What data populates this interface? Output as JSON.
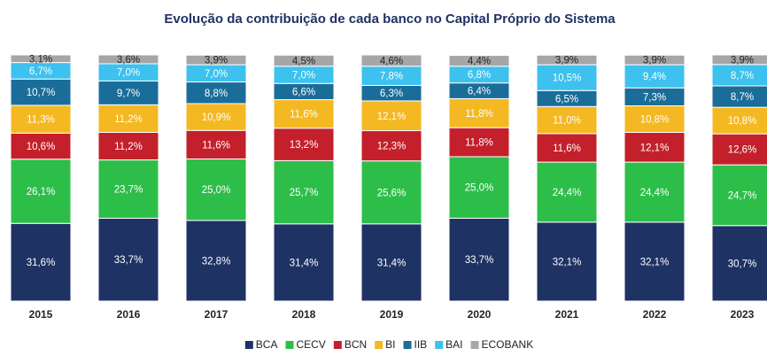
{
  "chart_data": {
    "type": "stacked_bar",
    "title": "Evolução da contribuição de cada banco no Capital Próprio do Sistema",
    "categories": [
      "2015",
      "2016",
      "2017",
      "2018",
      "2019",
      "2020",
      "2021",
      "2022",
      "2023"
    ],
    "series": [
      {
        "name": "BCA",
        "color": "#1f3264",
        "values": [
          31.6,
          33.7,
          32.8,
          31.4,
          31.4,
          33.7,
          32.1,
          32.1,
          30.7
        ],
        "value_labels": [
          "31,6%",
          "33,7%",
          "32,8%",
          "31,4%",
          "31,4%",
          "33,7%",
          "32,1%",
          "32,1%",
          "30,7%"
        ]
      },
      {
        "name": "CECV",
        "color": "#2dbe4a",
        "values": [
          26.1,
          23.7,
          25.0,
          25.7,
          25.6,
          25.0,
          24.4,
          24.4,
          24.7
        ],
        "value_labels": [
          "26,1%",
          "23,7%",
          "25,0%",
          "25,7%",
          "25,6%",
          "25,0%",
          "24,4%",
          "24,4%",
          "24,7%"
        ]
      },
      {
        "name": "BCN",
        "color": "#c3202b",
        "values": [
          10.6,
          11.2,
          11.6,
          13.2,
          12.3,
          11.8,
          11.6,
          12.1,
          12.6
        ],
        "value_labels": [
          "10,6%",
          "11,2%",
          "11,6%",
          "13,2%",
          "12,3%",
          "11,8%",
          "11,6%",
          "12,1%",
          "12,6%"
        ]
      },
      {
        "name": "BI",
        "color": "#f4b822",
        "values": [
          11.3,
          11.2,
          10.9,
          11.6,
          12.1,
          11.8,
          11.0,
          10.8,
          10.8
        ],
        "value_labels": [
          "11,3%",
          "11,2%",
          "10,9%",
          "11,6%",
          "12,1%",
          "11,8%",
          "11,0%",
          "10,8%",
          "10,8%"
        ]
      },
      {
        "name": "IIB",
        "color": "#1b6d99",
        "values": [
          10.7,
          9.7,
          8.8,
          6.6,
          6.3,
          6.4,
          6.5,
          7.3,
          8.7
        ],
        "value_labels": [
          "10,7%",
          "9,7%",
          "8,8%",
          "6,6%",
          "6,3%",
          "6,4%",
          "6,5%",
          "7,3%",
          "8,7%"
        ]
      },
      {
        "name": "BAI",
        "color": "#3dc1ee",
        "values": [
          6.7,
          7.0,
          7.0,
          7.0,
          7.8,
          6.8,
          10.5,
          9.4,
          8.7
        ],
        "value_labels": [
          "6,7%",
          "7,0%",
          "7,0%",
          "7,0%",
          "7,8%",
          "6,8%",
          "10,5%",
          "9,4%",
          "8,7%"
        ]
      },
      {
        "name": "ECOBANK",
        "color": "#a6a6a6",
        "values": [
          3.1,
          3.6,
          3.9,
          4.5,
          4.6,
          4.4,
          3.9,
          3.9,
          3.9
        ],
        "value_labels": [
          "3,1%",
          "3,6%",
          "3,9%",
          "4,5%",
          "4,6%",
          "4,4%",
          "3,9%",
          "3,9%",
          "3,9%"
        ]
      }
    ]
  }
}
